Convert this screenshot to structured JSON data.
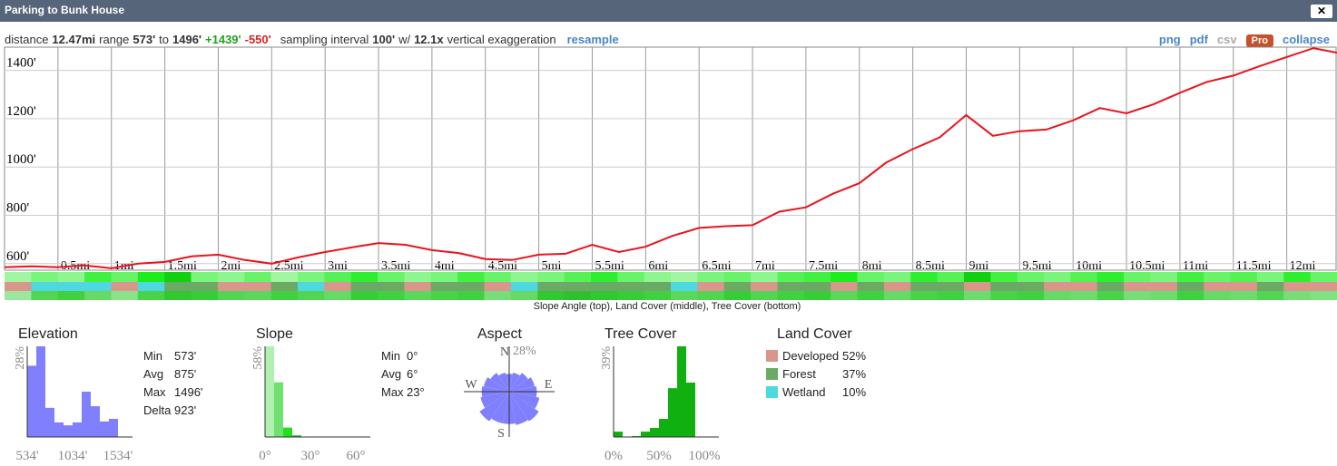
{
  "header": {
    "title": "Parking to Bunk House",
    "close": "✕"
  },
  "toolbar": {
    "segments": [
      {
        "text": "distance",
        "style": "plain"
      },
      {
        "text": "12.47mi",
        "style": "bold"
      },
      {
        "text": "range",
        "style": "plain"
      },
      {
        "text": "573'",
        "style": "bold"
      },
      {
        "text": "to",
        "style": "plain"
      },
      {
        "text": "1496'",
        "style": "bold"
      },
      {
        "text": "+1439'",
        "style": "up"
      },
      {
        "text": "-550'",
        "style": "down"
      },
      {
        "text": "sampling interval",
        "style": "plain"
      },
      {
        "text": "100'",
        "style": "bold"
      },
      {
        "text": "w/",
        "style": "plain"
      },
      {
        "text": "12.1x",
        "style": "bold"
      },
      {
        "text": "vertical exaggeration",
        "style": "plain"
      },
      {
        "text": "resample",
        "style": "link"
      }
    ],
    "links": [
      {
        "text": "png",
        "style": "link"
      },
      {
        "text": "pdf",
        "style": "link"
      },
      {
        "text": "csv",
        "style": "off"
      },
      {
        "text": "Pro",
        "style": "pro"
      },
      {
        "text": "collapse",
        "style": "link"
      }
    ]
  },
  "chart_data": [
    {
      "type": "line",
      "color": "#e8141e",
      "grid": true,
      "x": [
        0,
        0.25,
        0.5,
        0.75,
        1,
        1.25,
        1.5,
        1.75,
        2,
        2.25,
        2.5,
        2.75,
        3,
        3.25,
        3.5,
        3.75,
        4,
        4.25,
        4.5,
        4.75,
        5,
        5.25,
        5.5,
        5.75,
        6,
        6.25,
        6.5,
        6.75,
        7,
        7.25,
        7.5,
        7.75,
        8,
        8.25,
        8.5,
        8.75,
        9,
        9.25,
        9.5,
        9.75,
        10,
        10.25,
        10.5,
        10.75,
        11,
        11.25,
        11.5,
        11.75,
        12,
        12.25,
        12.47
      ],
      "values": [
        585,
        589,
        585,
        593,
        581,
        600,
        607,
        630,
        637,
        615,
        600,
        626,
        648,
        667,
        685,
        678,
        656,
        644,
        619,
        615,
        637,
        641,
        678,
        648,
        670,
        715,
        748,
        755,
        759,
        815,
        833,
        889,
        933,
        1018,
        1074,
        1122,
        1215,
        1129,
        1148,
        1155,
        1193,
        1244,
        1222,
        1259,
        1307,
        1352,
        1378,
        1418,
        1455,
        1492,
        1473
      ],
      "xlim": [
        0,
        12.47
      ],
      "ylim": [
        573,
        1496
      ],
      "xticks": [
        {
          "value": 0.5,
          "label": "0.5mi"
        },
        {
          "value": 1,
          "label": "1mi"
        },
        {
          "value": 1.5,
          "label": "1.5mi"
        },
        {
          "value": 2,
          "label": "2mi"
        },
        {
          "value": 2.5,
          "label": "2.5mi"
        },
        {
          "value": 3,
          "label": "3mi"
        },
        {
          "value": 3.5,
          "label": "3.5mi"
        },
        {
          "value": 4,
          "label": "4mi"
        },
        {
          "value": 4.5,
          "label": "4.5mi"
        },
        {
          "value": 5,
          "label": "5mi"
        },
        {
          "value": 5.5,
          "label": "5.5mi"
        },
        {
          "value": 6,
          "label": "6mi"
        },
        {
          "value": 6.5,
          "label": "6.5mi"
        },
        {
          "value": 7,
          "label": "7mi"
        },
        {
          "value": 7.5,
          "label": "7.5mi"
        },
        {
          "value": 8,
          "label": "8mi"
        },
        {
          "value": 8.5,
          "label": "8.5mi"
        },
        {
          "value": 9,
          "label": "9mi"
        },
        {
          "value": 9.5,
          "label": "9.5mi"
        },
        {
          "value": 10,
          "label": "10mi"
        },
        {
          "value": 10.5,
          "label": "10.5mi"
        },
        {
          "value": 11,
          "label": "11mi"
        },
        {
          "value": 11.5,
          "label": "11.5mi"
        },
        {
          "value": 12,
          "label": "12mi"
        }
      ],
      "yticks": [
        {
          "value": 600,
          "label": "600'"
        },
        {
          "value": 800,
          "label": "800'"
        },
        {
          "value": 1000,
          "label": "1000'"
        },
        {
          "value": 1200,
          "label": "1200'"
        },
        {
          "value": 1400,
          "label": "1400'"
        }
      ]
    },
    {
      "type": "histogram",
      "title": "Elevation",
      "color": "#8080ff",
      "bins": [
        534,
        634,
        734,
        834,
        934,
        1034,
        1134,
        1234,
        1334,
        1434,
        1534
      ],
      "values": [
        22,
        28,
        9,
        4.5,
        3.6,
        4.5,
        14,
        9.5,
        4.8,
        5.6
      ],
      "xlim": [
        534,
        1534
      ],
      "ylim": [
        0,
        28
      ],
      "xticks": [
        {
          "value": 534,
          "label": "534'"
        },
        {
          "value": 1034,
          "label": "1034'"
        },
        {
          "value": 1534,
          "label": "1534'"
        }
      ],
      "yticks": [
        {
          "value": 28,
          "label": "28%"
        }
      ],
      "stats": [
        {
          "label": "Min",
          "value": "573'"
        },
        {
          "label": "Avg",
          "value": "875'"
        },
        {
          "label": "Max",
          "value": "1496'"
        },
        {
          "label": "Delta",
          "value": "923'"
        }
      ]
    },
    {
      "type": "histogram",
      "title": "Slope",
      "colors": [
        "#b0f0b0",
        "#70e070",
        "#20e020",
        "#10c010",
        "#10c010",
        "#10c010",
        "#10c010",
        "#10c010",
        "#10c010",
        "#10c010"
      ],
      "bins": [
        0,
        6,
        12,
        18,
        24,
        30,
        36,
        42,
        48,
        54,
        60
      ],
      "values": [
        58,
        35,
        6,
        1,
        0,
        0,
        0,
        0,
        0,
        0
      ],
      "xlim": [
        0,
        60
      ],
      "ylim": [
        0,
        58
      ],
      "xticks": [
        {
          "value": 0,
          "label": "0°"
        },
        {
          "value": 30,
          "label": "30°"
        },
        {
          "value": 60,
          "label": "60°"
        }
      ],
      "yticks": [
        {
          "value": 58,
          "label": "58%"
        }
      ],
      "stats": [
        {
          "label": "Min",
          "value": "0°"
        },
        {
          "label": "Avg",
          "value": "6°"
        },
        {
          "label": "Max",
          "value": "23°"
        }
      ]
    },
    {
      "type": "polar",
      "title": "Aspect",
      "color": "#8080ff",
      "values": [
        11,
        12,
        14,
        16,
        17,
        19,
        22,
        21,
        20,
        20,
        22,
        18,
        17,
        16,
        14,
        12
      ],
      "rlim": [
        0,
        28
      ],
      "rticks": [
        {
          "value": 28,
          "label": "28%"
        }
      ],
      "directions": [
        "N",
        "E",
        "S",
        "W"
      ]
    },
    {
      "type": "histogram",
      "title": "Tree Cover",
      "color": "#10b010",
      "bins": [
        0,
        10,
        20,
        30,
        40,
        50,
        60,
        70,
        80,
        90,
        100
      ],
      "values": [
        2.3,
        0,
        0.4,
        2.3,
        3.9,
        7.8,
        21,
        39,
        23.4,
        0
      ],
      "xlim": [
        0,
        100
      ],
      "ylim": [
        0,
        39
      ],
      "xticks": [
        {
          "value": 0,
          "label": "0%"
        },
        {
          "value": 50,
          "label": "50%"
        },
        {
          "value": 100,
          "label": "100%"
        }
      ],
      "yticks": [
        {
          "value": 39,
          "label": "39%"
        }
      ]
    },
    {
      "type": "legend",
      "title": "Land Cover",
      "categories": [
        "Developed",
        "Forest",
        "Wetland"
      ],
      "values": [
        52,
        37,
        10
      ],
      "value_labels": [
        "52%",
        "37%",
        "10%"
      ],
      "colors": [
        "#d9968a",
        "#6aaa64",
        "#4dd9e0"
      ]
    },
    {
      "type": "strip",
      "title": "Slope Angle (top), Land Cover (middle), Tree Cover (bottom)",
      "xlim": [
        0,
        12.47
      ],
      "rows": [
        {
          "kind": "slope",
          "values": [
            3,
            5,
            4,
            8,
            6,
            10,
            12,
            5,
            4,
            6,
            3,
            5,
            7,
            9,
            6,
            4,
            5,
            8,
            6,
            4,
            5,
            7,
            9,
            6,
            4,
            3,
            5,
            6,
            4,
            7,
            8,
            10,
            6,
            5,
            9,
            7,
            12,
            8,
            6,
            5,
            7,
            9,
            6,
            5,
            8,
            6,
            7,
            5,
            9,
            6
          ]
        },
        {
          "kind": "land",
          "values": [
            0,
            2,
            2,
            2,
            0,
            2,
            1,
            1,
            0,
            0,
            1,
            2,
            0,
            1,
            1,
            0,
            1,
            1,
            0,
            2,
            1,
            1,
            1,
            1,
            1,
            2,
            0,
            1,
            0,
            1,
            1,
            0,
            1,
            0,
            1,
            1,
            0,
            1,
            1,
            0,
            0,
            1,
            0,
            0,
            1,
            0,
            0,
            1,
            0,
            0
          ]
        },
        {
          "kind": "tree",
          "values": [
            20,
            60,
            70,
            50,
            30,
            65,
            80,
            75,
            60,
            55,
            70,
            60,
            50,
            75,
            70,
            55,
            65,
            70,
            40,
            50,
            80,
            85,
            80,
            75,
            70,
            55,
            60,
            75,
            60,
            70,
            75,
            55,
            70,
            50,
            65,
            70,
            45,
            65,
            70,
            50,
            45,
            65,
            40,
            45,
            70,
            50,
            45,
            60,
            40,
            35
          ]
        }
      ]
    }
  ]
}
